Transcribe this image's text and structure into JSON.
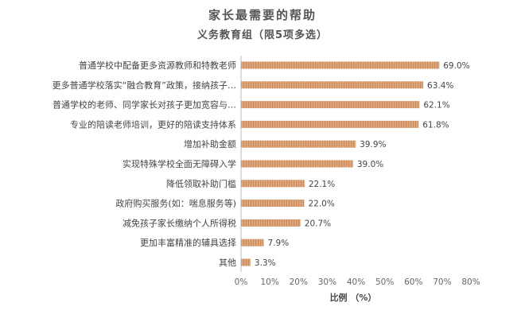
{
  "chart_data": {
    "type": "bar",
    "orientation": "horizontal",
    "title": "家长最需要的帮助",
    "subtitle": "义务教育组（限5项多选）",
    "xlabel": "比例 （%）",
    "ylabel": "",
    "xlim": [
      0,
      80
    ],
    "x_ticks": [
      "0%",
      "10%",
      "20%",
      "30%",
      "40%",
      "50%",
      "60%",
      "70%",
      "80%"
    ],
    "grid": false,
    "legend": "none",
    "bar_color": "#e0a87c",
    "bar_stripe_color": "#c98a5d",
    "categories": [
      "普通学校中配备更多资源教师和特教老师",
      "更多普通学校落实“融合教育”政策，接纳孩子…",
      "普通学校的老师、同学家长对孩子更加宽容与…",
      "专业的陪读老师培训，更好的陪读支持体系",
      "增加补助金额",
      "实现特殊学校全面无障碍入学",
      "降低领取补助门槛",
      "政府购买服务(如：喘息服务等)",
      "减免孩子家长缴纳个人所得税",
      "更加丰富精准的辅具选择",
      "其他"
    ],
    "values": [
      69.0,
      63.4,
      62.1,
      61.8,
      39.9,
      39.0,
      22.1,
      22.0,
      20.7,
      7.9,
      3.3
    ],
    "value_labels": [
      "69.0%",
      "63.4%",
      "62.1%",
      "61.8%",
      "39.9%",
      "39.0%",
      "22.1%",
      "22.0%",
      "20.7%",
      "7.9%",
      "3.3%"
    ]
  }
}
